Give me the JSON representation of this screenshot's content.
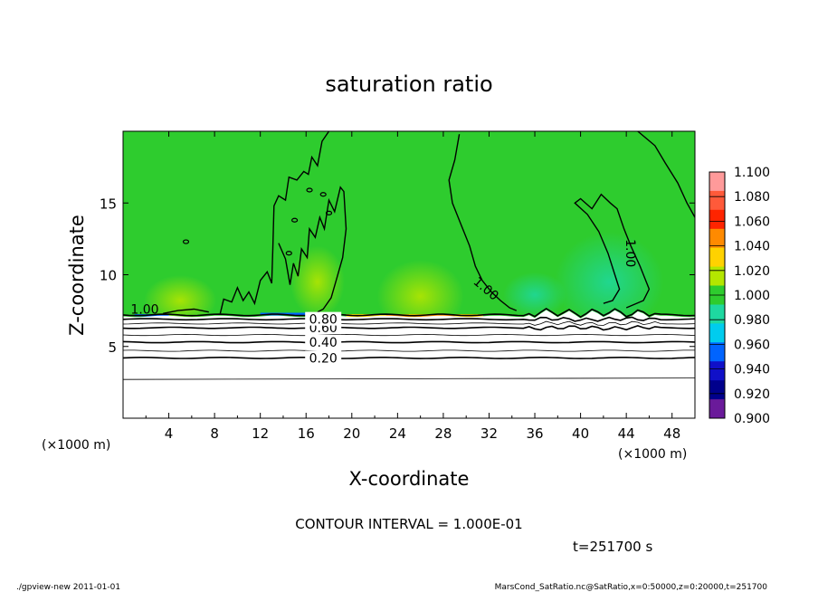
{
  "chart_data": {
    "type": "contour",
    "title": "saturation ratio",
    "xlabel": "X-coordinate",
    "ylabel": "Z-coordinate",
    "x_unit": "(×1000 m)",
    "z_unit": "(×1000 m)",
    "xlim": [
      0,
      50
    ],
    "ylim": [
      0,
      20
    ],
    "x_ticks": [
      4,
      8,
      12,
      16,
      20,
      24,
      28,
      32,
      36,
      40,
      44,
      48
    ],
    "y_ticks": [
      5,
      10,
      15
    ],
    "contour_interval_text": "CONTOUR INTERVAL = 1.000E-01",
    "time_text": "t=251700 s",
    "contour_levels": [
      {
        "value": 0.2,
        "label": "0.20",
        "z": 4.2
      },
      {
        "value": 0.3,
        "label": "",
        "z": 4.7
      },
      {
        "value": 0.4,
        "label": "0.40",
        "z": 5.3
      },
      {
        "value": 0.5,
        "label": "",
        "z": 5.8
      },
      {
        "value": 0.6,
        "label": "0.60",
        "z": 6.3
      },
      {
        "value": 0.7,
        "label": "",
        "z": 6.6
      },
      {
        "value": 0.8,
        "label": "0.80",
        "z": 6.9
      },
      {
        "value": 1.0,
        "label": "1.00",
        "z": 7.1
      }
    ],
    "colorbar": {
      "labels": [
        "1.100",
        "1.080",
        "1.060",
        "1.040",
        "1.020",
        "1.000",
        "0.980",
        "0.960",
        "0.940",
        "0.920",
        "0.900"
      ],
      "colors": [
        "#ff9a9a",
        "#ff5a3a",
        "#ff2400",
        "#ff8a00",
        "#ffd200",
        "#b4e600",
        "#2ecc2e",
        "#1ed8a0",
        "#00ccee",
        "#0064ff",
        "#1010c8",
        "#00008c",
        "#6a1a9a"
      ]
    },
    "field_colors": {
      "background": "#2ecc2e",
      "supersat_band": "#ffd200",
      "subsat_patch": "#1ed8a0",
      "low_region": "#ffffff"
    }
  },
  "footer": {
    "left": "./gpview-new   2011-01-01",
    "right": "MarsCond_SatRatio.nc@SatRatio,x=0:50000,z=0:20000,t=251700"
  }
}
